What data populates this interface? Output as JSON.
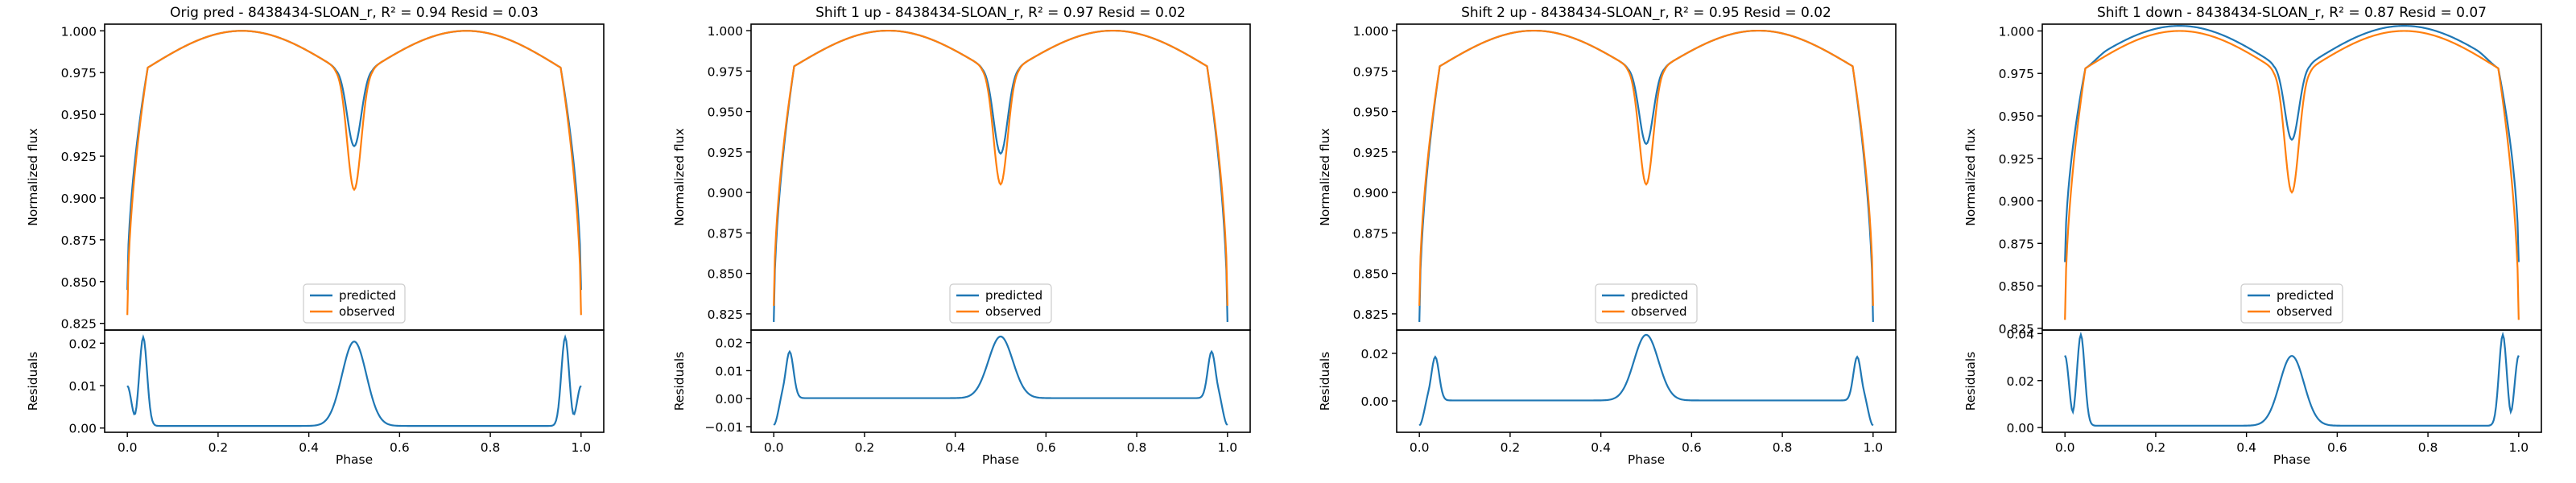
{
  "colors": {
    "predicted": "#1f77b4",
    "observed": "#ff7f0e"
  },
  "chart_data": [
    {
      "type": "line",
      "title_prefix": "Orig pred - 8438434-SLOAN_r, ",
      "title_r2": "R² = 0.94",
      "title_resid": " Resid = 0.03",
      "xlabel": "Phase",
      "ylabel_top": "Normalized flux",
      "ylabel_bottom": "Residuals",
      "legend": [
        "predicted",
        "observed"
      ],
      "legend_position": "lower center",
      "xlim": [
        -0.05,
        1.05
      ],
      "ylim_top": [
        0.821,
        1.004
      ],
      "ylim_bottom": [
        -0.001,
        0.0231
      ],
      "x_ticks": [
        "0.0",
        "0.2",
        "0.4",
        "0.6",
        "0.8",
        "1.0"
      ],
      "y_ticks_top": [
        "0.825",
        "0.850",
        "0.875",
        "0.900",
        "0.925",
        "0.950",
        "0.975",
        "1.000"
      ],
      "y_ticks_bottom": [
        "0.00",
        "0.01",
        "0.02"
      ],
      "eclipse_params": {
        "predicted_start": 0.845,
        "predicted_primary_depth": 0.047,
        "observed_start": 0.83,
        "observed_primary_depth": 0.073,
        "predicted_offset": 0.0
      },
      "residual_params": {
        "baseline": 0.0005,
        "edge_peak": 0.0214,
        "center_peak": 0.0204,
        "edge_end": 0.011
      }
    },
    {
      "type": "line",
      "title_prefix": "Shift 1 up - 8438434-SLOAN_r, ",
      "title_r2": "R² = 0.97",
      "title_resid": " Resid = 0.02",
      "xlabel": "Phase",
      "ylabel_top": "Normalized flux",
      "ylabel_bottom": "Residuals",
      "legend": [
        "predicted",
        "observed"
      ],
      "legend_position": "lower center",
      "xlim": [
        -0.05,
        1.05
      ],
      "ylim_top": [
        0.815,
        1.004
      ],
      "ylim_bottom": [
        -0.012,
        0.0245
      ],
      "x_ticks": [
        "0.0",
        "0.2",
        "0.4",
        "0.6",
        "0.8",
        "1.0"
      ],
      "y_ticks_top": [
        "0.825",
        "0.850",
        "0.875",
        "0.900",
        "0.925",
        "0.950",
        "0.975",
        "1.000"
      ],
      "y_ticks_bottom": [
        "−0.01",
        "0.00",
        "0.01",
        "0.02"
      ],
      "eclipse_params": {
        "predicted_start": 0.82,
        "predicted_primary_depth": 0.054,
        "observed_start": 0.83,
        "observed_primary_depth": 0.073,
        "predicted_offset": 0.0
      },
      "residual_params": {
        "baseline": 0.0002,
        "edge_peak": 0.0168,
        "center_peak": 0.0222,
        "edge_end": -0.0105
      }
    },
    {
      "type": "line",
      "title_prefix": "Shift 2 up - 8438434-SLOAN_r, ",
      "title_r2": "R² = 0.95",
      "title_resid": " Resid = 0.02",
      "xlabel": "Phase",
      "ylabel_top": "Normalized flux",
      "ylabel_bottom": "Residuals",
      "legend": [
        "predicted",
        "observed"
      ],
      "legend_position": "lower center",
      "xlim": [
        -0.05,
        1.05
      ],
      "ylim_top": [
        0.815,
        1.004
      ],
      "ylim_bottom": [
        -0.0132,
        0.0298
      ],
      "x_ticks": [
        "0.0",
        "0.2",
        "0.4",
        "0.6",
        "0.8",
        "1.0"
      ],
      "y_ticks_top": [
        "0.825",
        "0.850",
        "0.875",
        "0.900",
        "0.925",
        "0.950",
        "0.975",
        "1.000"
      ],
      "y_ticks_bottom": [
        "0.00",
        "0.02"
      ],
      "eclipse_params": {
        "predicted_start": 0.82,
        "predicted_primary_depth": 0.048,
        "observed_start": 0.83,
        "observed_primary_depth": 0.073,
        "predicted_offset": 0.0
      },
      "residual_params": {
        "baseline": 0.0002,
        "edge_peak": 0.0185,
        "center_peak": 0.0278,
        "edge_end": -0.0115
      }
    },
    {
      "type": "line",
      "title_prefix": "Shift 1 down - 8438434-SLOAN_r, ",
      "title_r2": "R² = 0.87",
      "title_resid": " Resid = 0.07",
      "xlabel": "Phase",
      "ylabel_top": "Normalized flux",
      "ylabel_bottom": "Residuals",
      "legend": [
        "predicted",
        "observed"
      ],
      "legend_position": "lower center",
      "xlim": [
        -0.05,
        1.05
      ],
      "ylim_top": [
        0.824,
        1.004
      ],
      "ylim_bottom": [
        -0.002,
        0.0415
      ],
      "x_ticks": [
        "0.0",
        "0.2",
        "0.4",
        "0.6",
        "0.8",
        "1.0"
      ],
      "y_ticks_top": [
        "0.825",
        "0.850",
        "0.875",
        "0.900",
        "0.925",
        "0.950",
        "0.975",
        "1.000"
      ],
      "y_ticks_bottom": [
        "0.00",
        "0.02",
        "0.04"
      ],
      "eclipse_params": {
        "predicted_start": 0.864,
        "predicted_primary_depth": 0.045,
        "observed_start": 0.83,
        "observed_primary_depth": 0.073,
        "predicted_offset": 0.003
      },
      "residual_params": {
        "baseline": 0.0008,
        "edge_peak": 0.0395,
        "center_peak": 0.0305,
        "edge_end": 0.034
      }
    }
  ]
}
